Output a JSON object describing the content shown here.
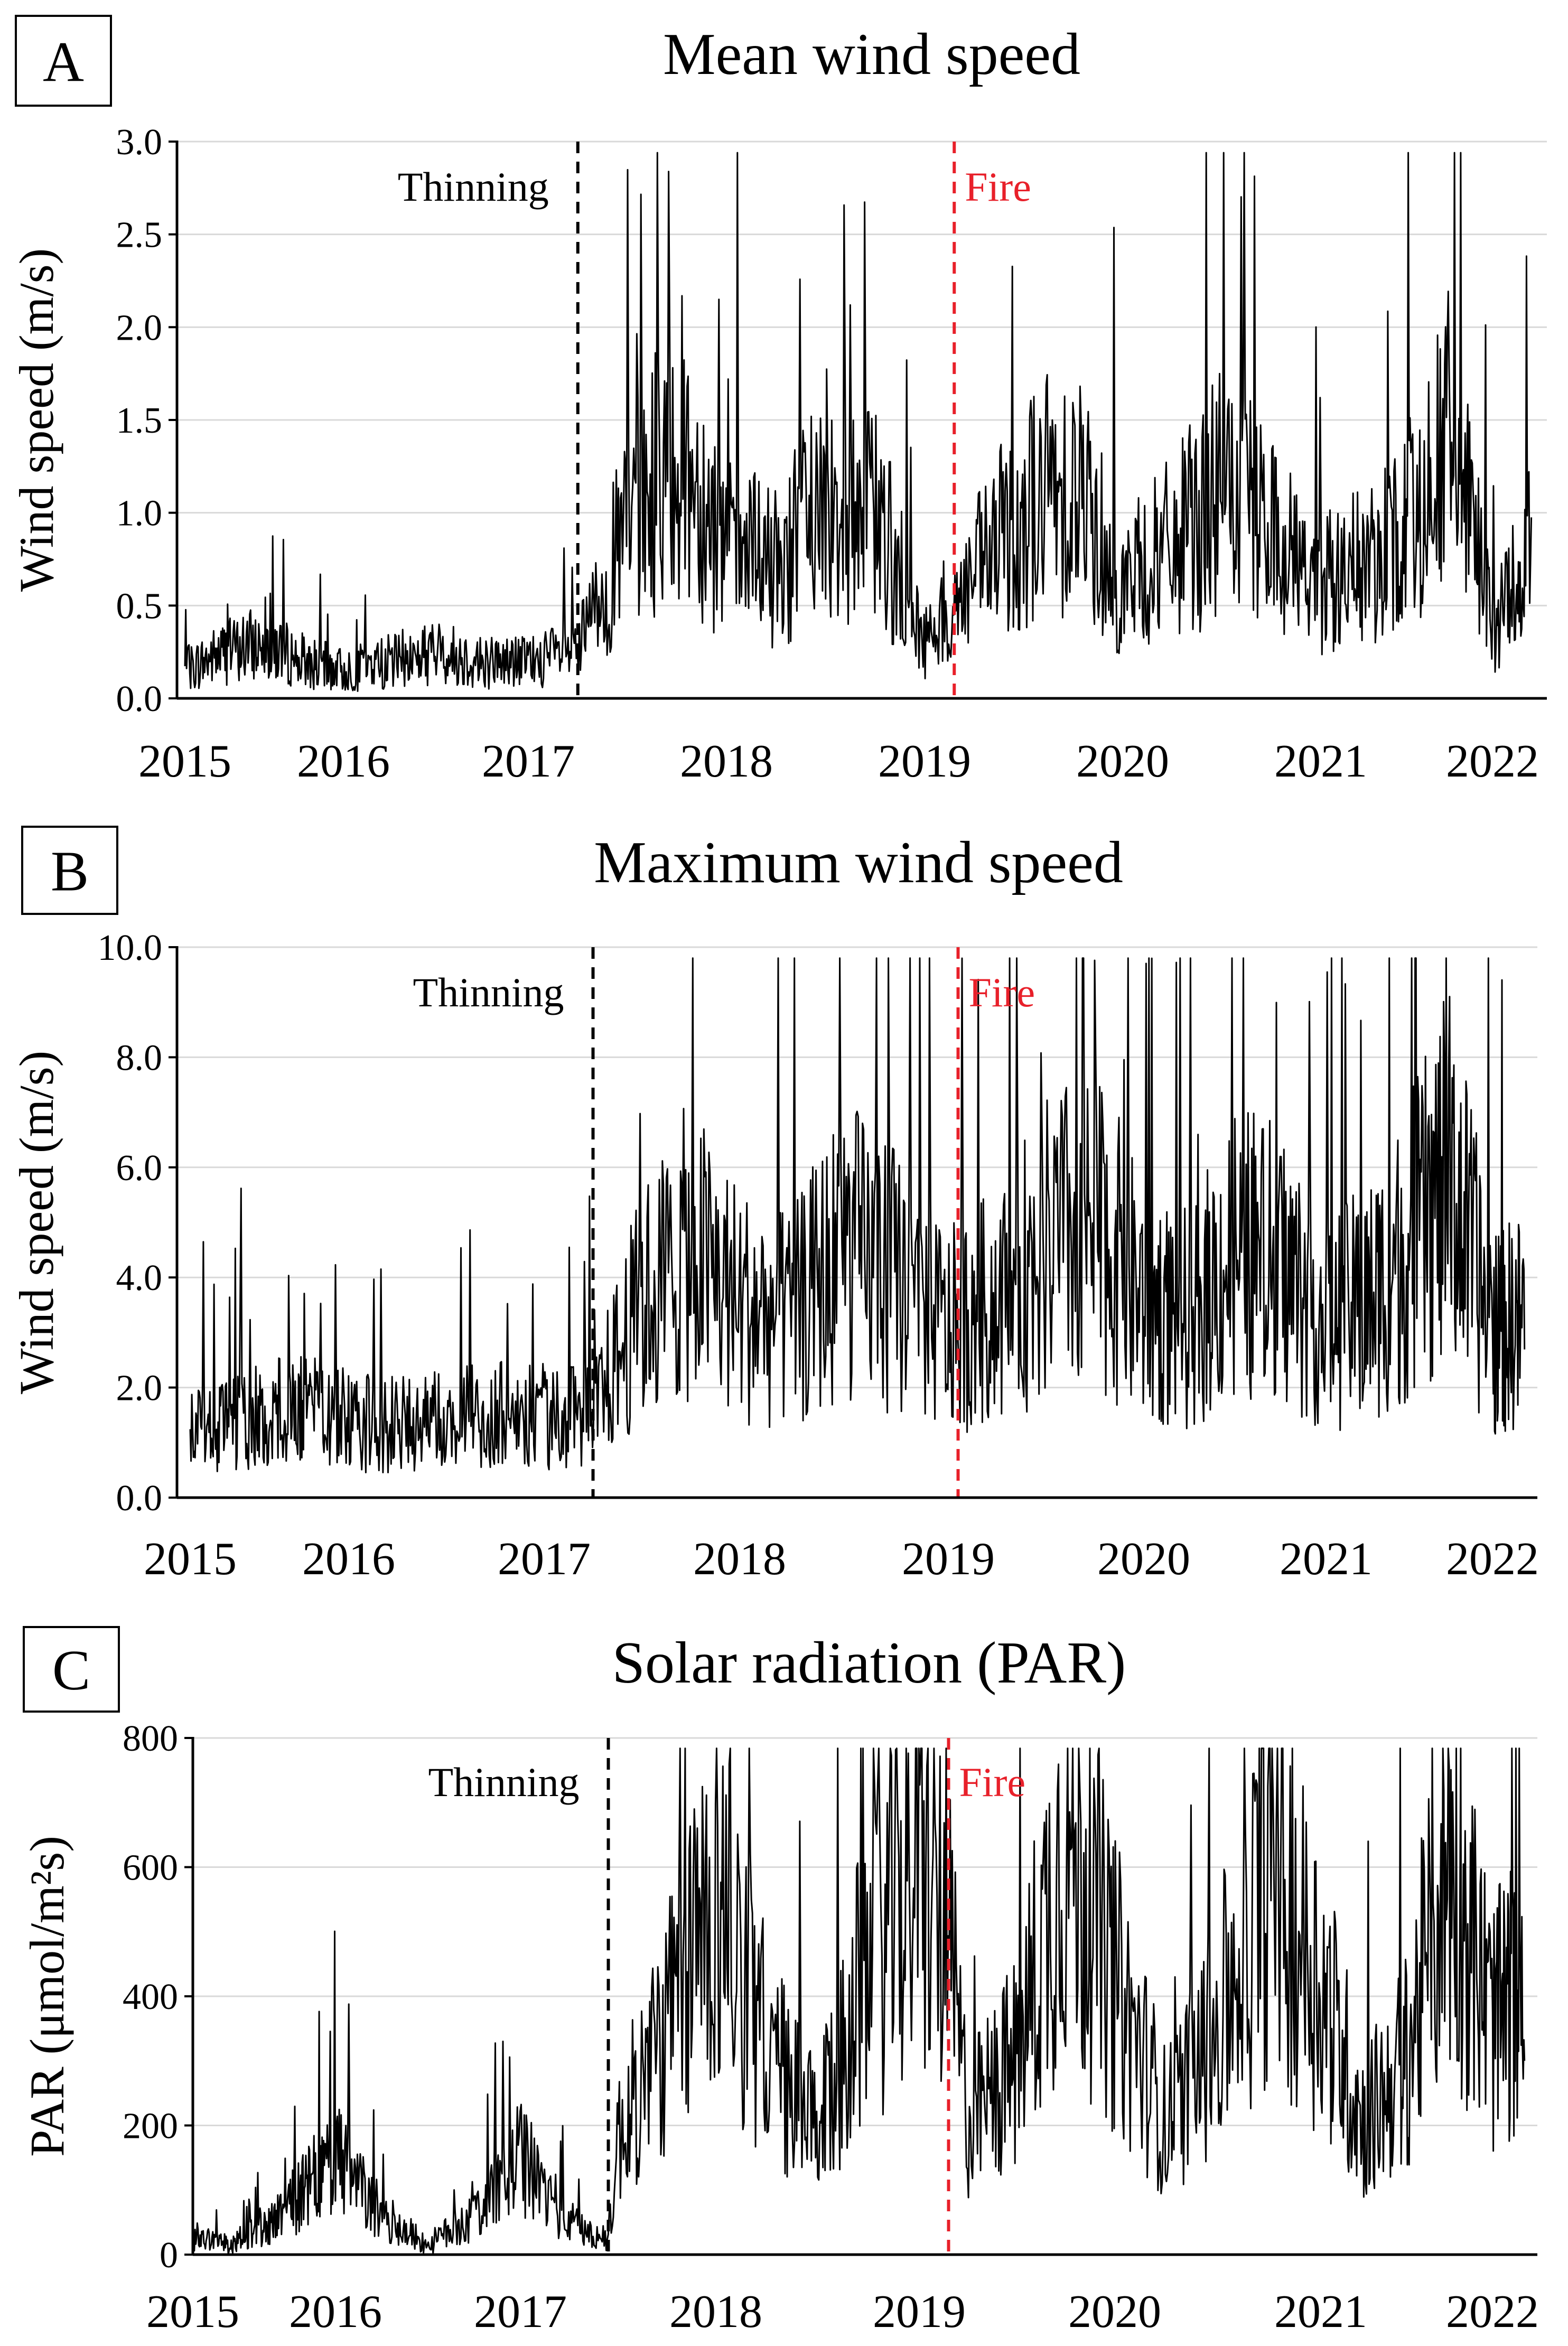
{
  "chart_data": [
    {
      "type": "line",
      "panel_label": "A",
      "title": "Mean wind speed",
      "xlabel": "",
      "ylabel": "Wind speed (m/s)",
      "ylim": [
        0,
        3.0
      ],
      "y_ticks": [
        "0.0",
        "0.5",
        "1.0",
        "1.5",
        "2.0",
        "2.5",
        "3.0"
      ],
      "x_ticks": [
        "2015",
        "2016",
        "2017",
        "2018",
        "2019",
        "2020",
        "2021",
        "2022"
      ],
      "grid": "horizontal",
      "annotations": [
        {
          "label": "Thinning",
          "x": 2017.25,
          "color": "#000000"
        },
        {
          "label": "Fire",
          "x": 2019.15,
          "color": "#e8202a"
        }
      ],
      "series": [
        {
          "name": "Mean wind speed",
          "x": [
            2015.0,
            2015.25,
            2015.5,
            2015.75,
            2016.0,
            2016.25,
            2016.5,
            2016.75,
            2017.0,
            2017.25,
            2017.5,
            2017.75,
            2018.0,
            2018.25,
            2018.5,
            2018.75,
            2019.0,
            2019.15,
            2019.5,
            2019.75,
            2020.0,
            2020.25,
            2020.5,
            2020.75,
            2021.0,
            2021.25,
            2021.5,
            2021.75,
            2022.0,
            2022.25
          ],
          "values": [
            0.15,
            0.25,
            0.3,
            0.2,
            0.15,
            0.2,
            0.25,
            0.2,
            0.2,
            0.25,
            0.9,
            1.4,
            0.8,
            0.7,
            1.1,
            1.0,
            0.3,
            0.5,
            1.0,
            1.2,
            0.6,
            0.8,
            1.1,
            0.9,
            0.6,
            0.7,
            0.9,
            1.4,
            0.4,
            0.8
          ]
        }
      ]
    },
    {
      "type": "line",
      "panel_label": "B",
      "title": "Maximum wind speed",
      "xlabel": "",
      "ylabel": "Wind speed (m/s)",
      "ylim": [
        0,
        10.0
      ],
      "y_ticks": [
        "0.0",
        "2.0",
        "4.0",
        "6.0",
        "8.0",
        "10.0"
      ],
      "x_ticks": [
        "2015",
        "2016",
        "2017",
        "2018",
        "2019",
        "2020",
        "2021",
        "2022"
      ],
      "grid": "horizontal",
      "annotations": [
        {
          "label": "Thinning",
          "x": 2017.25,
          "color": "#000000"
        },
        {
          "label": "Fire",
          "x": 2019.05,
          "color": "#e8202a"
        }
      ],
      "series": [
        {
          "name": "Maximum wind speed",
          "x": [
            2015.0,
            2015.25,
            2015.5,
            2015.75,
            2016.0,
            2016.25,
            2016.5,
            2016.75,
            2017.0,
            2017.25,
            2017.5,
            2017.75,
            2018.0,
            2018.25,
            2018.5,
            2018.75,
            2019.0,
            2019.25,
            2019.5,
            2019.75,
            2020.0,
            2020.25,
            2020.5,
            2020.75,
            2021.0,
            2021.25,
            2021.5,
            2021.75,
            2022.0,
            2022.25
          ],
          "values": [
            1.2,
            1.3,
            1.5,
            1.6,
            1.4,
            1.3,
            1.4,
            1.5,
            1.5,
            1.5,
            3.5,
            4.5,
            3.5,
            3.2,
            4.5,
            4.0,
            3.0,
            3.5,
            4.5,
            5.0,
            3.5,
            3.2,
            4.5,
            4.2,
            3.2,
            3.5,
            4.5,
            5.8,
            3.0,
            3.2
          ]
        }
      ]
    },
    {
      "type": "line",
      "panel_label": "C",
      "title": "Solar radiation (PAR)",
      "xlabel": "",
      "ylabel": "PAR (μmol/m²s)",
      "ylim": [
        0,
        800
      ],
      "y_ticks": [
        "0",
        "200",
        "400",
        "600",
        "800"
      ],
      "x_ticks": [
        "2015",
        "2016",
        "2017",
        "2018",
        "2019",
        "2020",
        "2021",
        "2022"
      ],
      "grid": "horizontal",
      "annotations": [
        {
          "label": "Thinning",
          "x": 2017.45,
          "color": "#000000"
        },
        {
          "label": "Fire",
          "x": 2019.15,
          "color": "#e8202a"
        }
      ],
      "series": [
        {
          "name": "PAR",
          "x": [
            2015.0,
            2015.25,
            2015.5,
            2015.75,
            2016.0,
            2016.25,
            2016.5,
            2016.75,
            2017.0,
            2017.25,
            2017.45,
            2017.5,
            2017.75,
            2018.0,
            2018.25,
            2018.5,
            2018.75,
            2019.0,
            2019.15,
            2019.25,
            2019.5,
            2019.75,
            2020.0,
            2020.25,
            2020.5,
            2020.75,
            2021.0,
            2021.25,
            2021.5,
            2021.75,
            2022.0,
            2022.25
          ],
          "values": [
            30,
            15,
            40,
            90,
            150,
            60,
            15,
            60,
            150,
            50,
            20,
            180,
            350,
            580,
            320,
            180,
            450,
            600,
            480,
            200,
            300,
            650,
            420,
            200,
            350,
            600,
            420,
            200,
            300,
            620,
            350,
            420
          ]
        }
      ]
    }
  ]
}
